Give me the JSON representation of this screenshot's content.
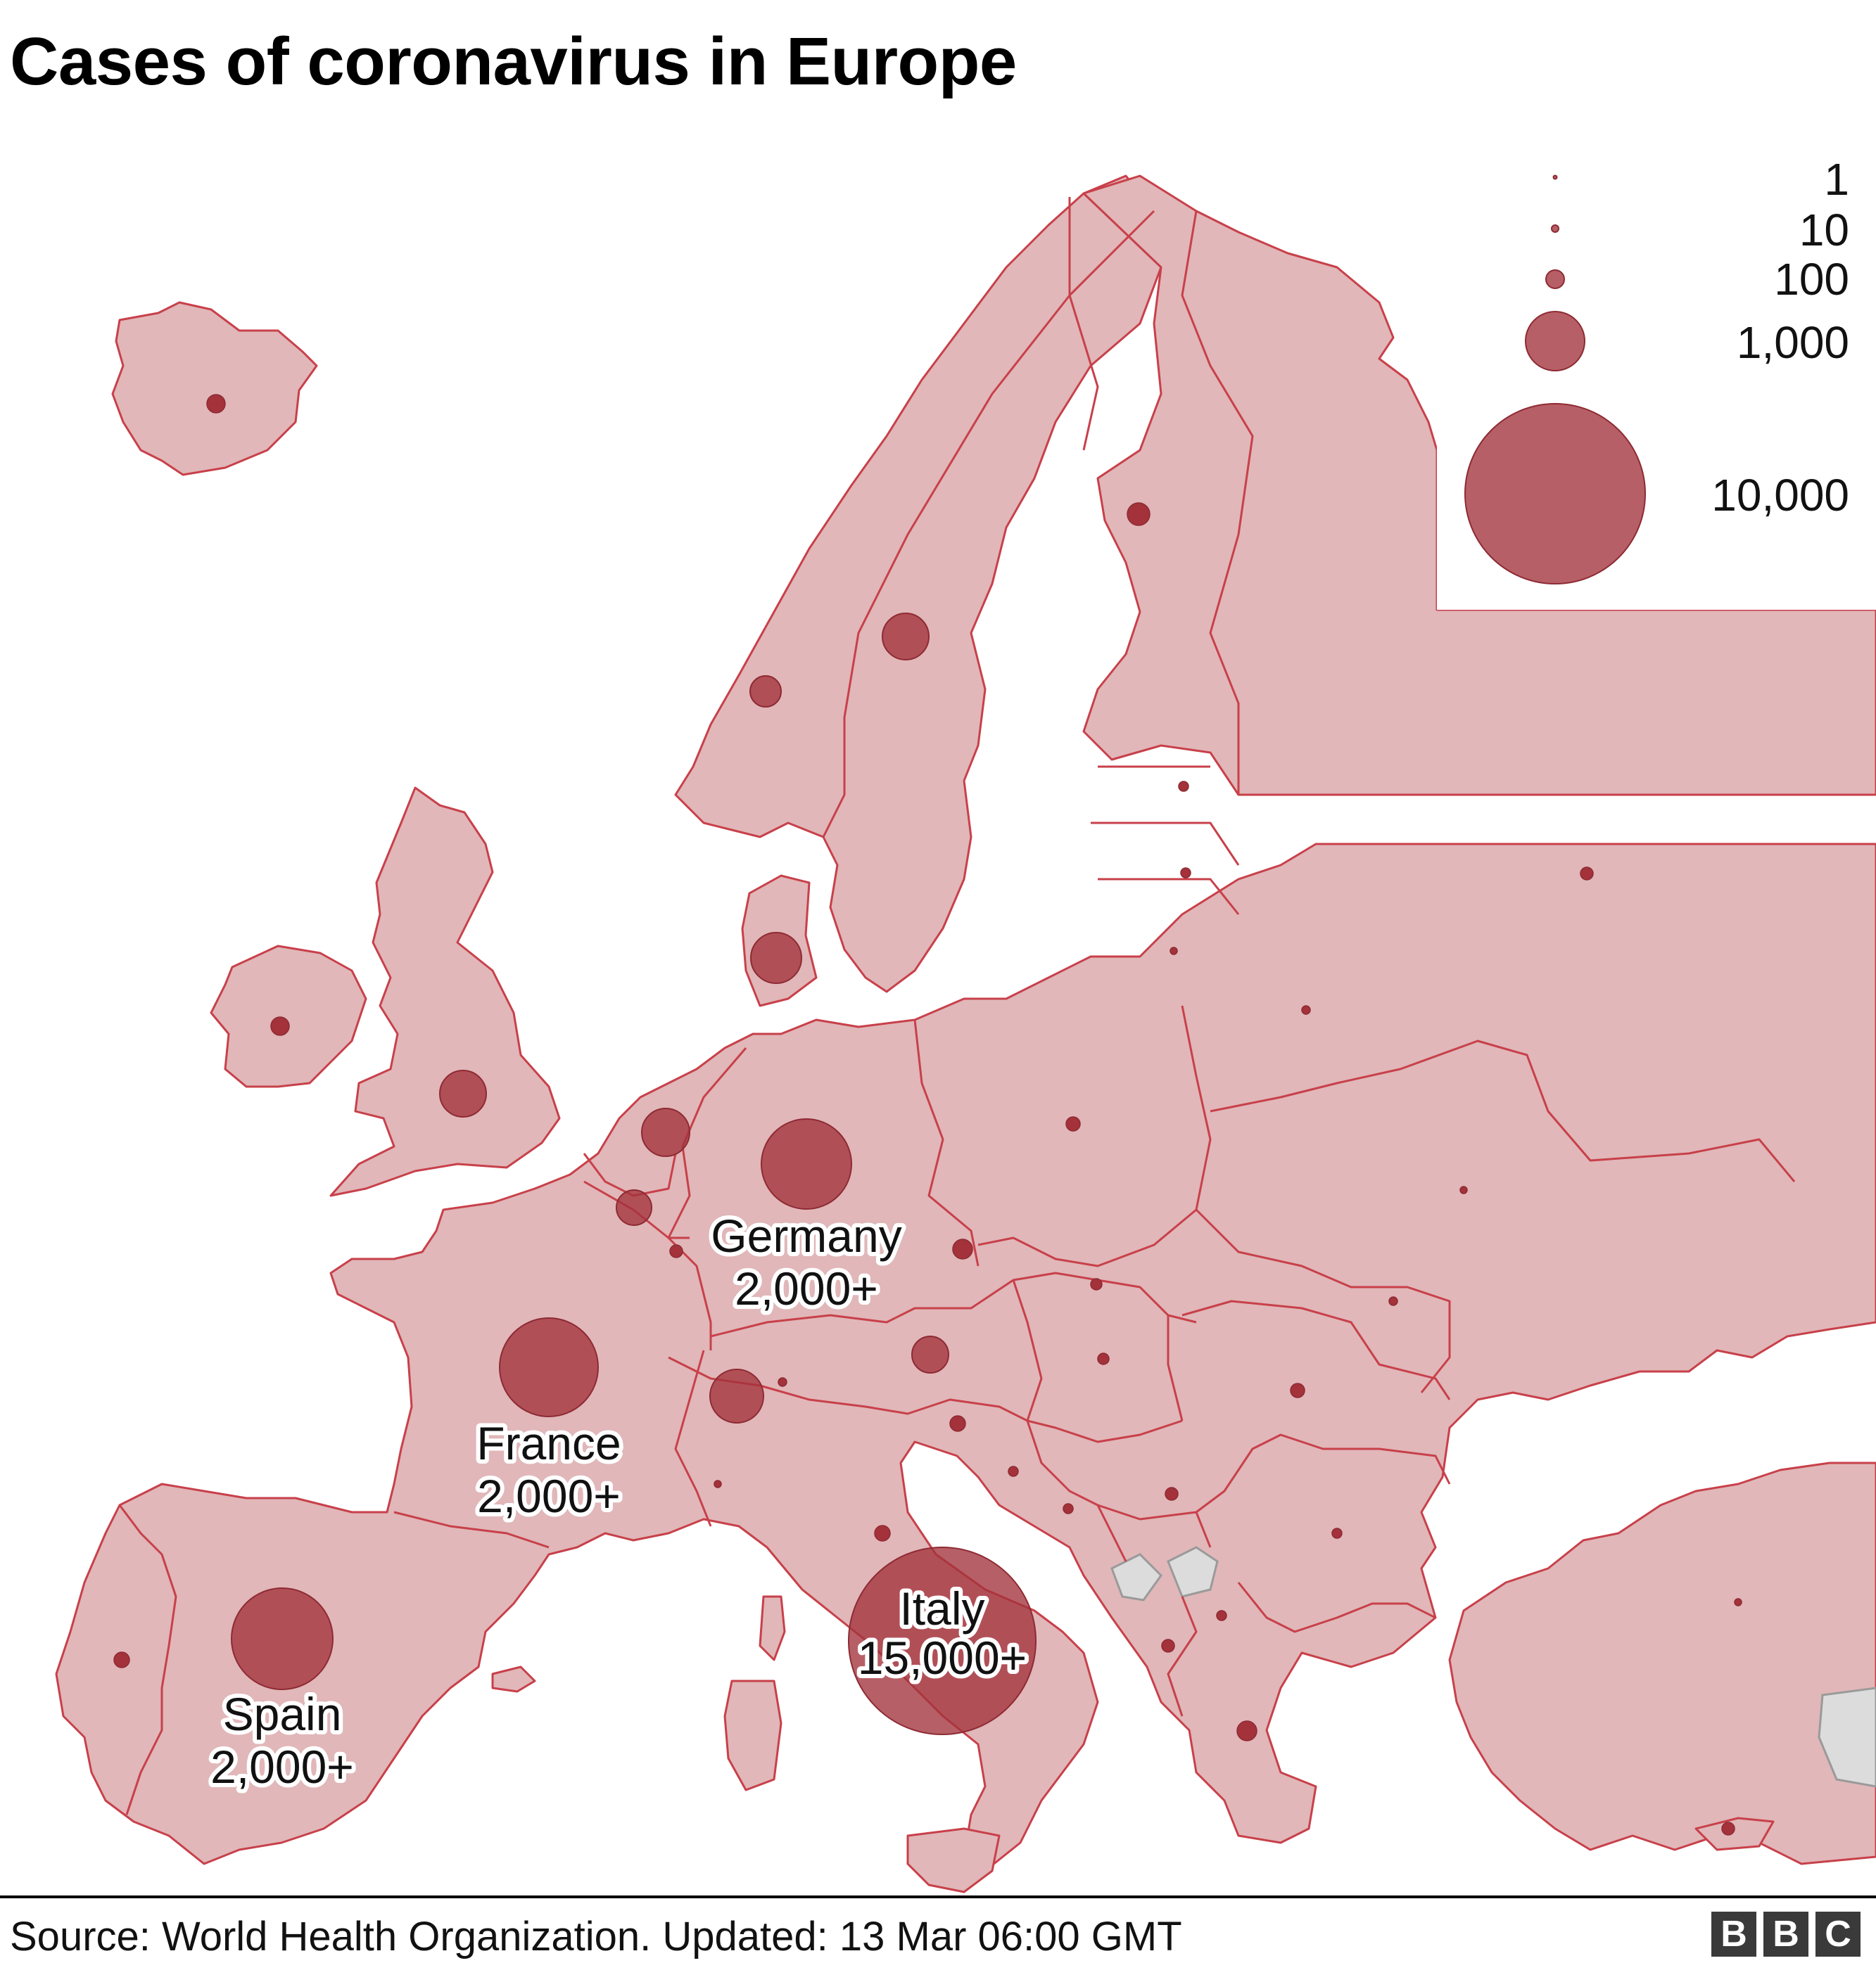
{
  "title": "Cases of coronavirus in Europe",
  "source": "Source: World Health Organization. Updated: 13 Mar 06:00 GMT",
  "logo": {
    "letters": [
      "B",
      "B",
      "C"
    ],
    "color": "#3a3a3a"
  },
  "colors": {
    "land": "#e1b7b9",
    "border": "#c8404a",
    "bubble": "#a3323b",
    "no_data": "#dcdcdc"
  },
  "legend": {
    "items": [
      {
        "label": "1",
        "value": 1
      },
      {
        "label": "10",
        "value": 10
      },
      {
        "label": "100",
        "value": 100
      },
      {
        "label": "1,000",
        "value": 1000
      },
      {
        "label": "10,000",
        "value": 10000
      }
    ]
  },
  "labels": [
    {
      "name": "Italy",
      "value": "15,000+"
    },
    {
      "name": "Germany",
      "value": "2,000+"
    },
    {
      "name": "France",
      "value": "2,000+"
    },
    {
      "name": "Spain",
      "value": "2,000+"
    }
  ],
  "chart_data": {
    "type": "map",
    "encoding": "proportional circles by number of confirmed cases",
    "labelled": [
      {
        "country": "Italy",
        "cases_label": "15,000+"
      },
      {
        "country": "Germany",
        "cases_label": "2,000+"
      },
      {
        "country": "France",
        "cases_label": "2,000+"
      },
      {
        "country": "Spain",
        "cases_label": "2,000+"
      }
    ]
  }
}
